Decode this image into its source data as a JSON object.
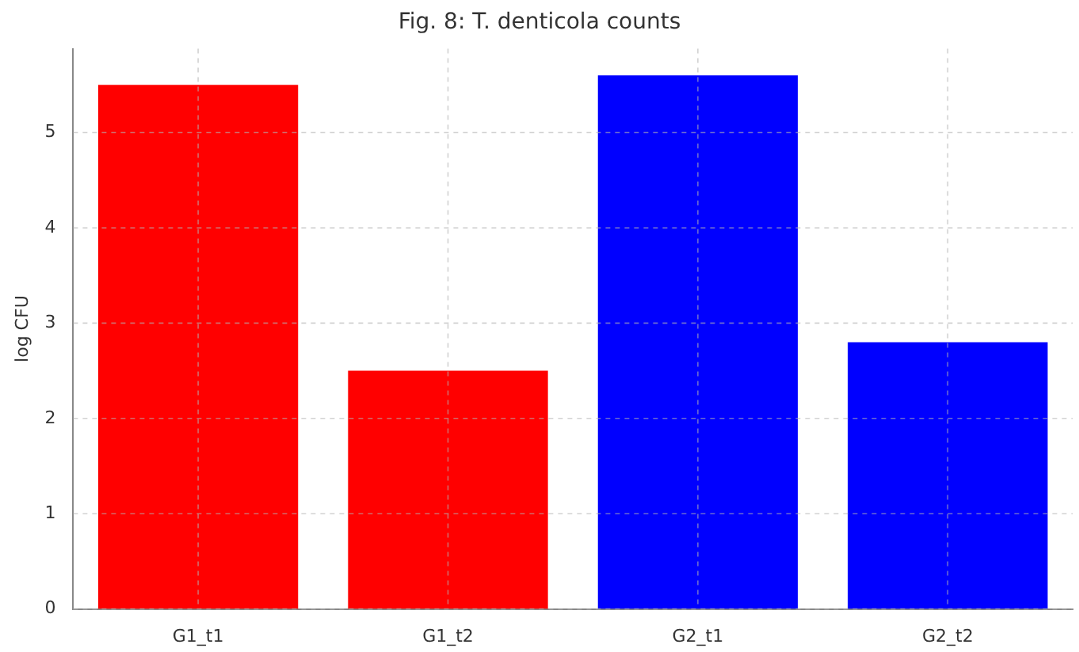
{
  "chart_data": {
    "type": "bar",
    "title": "Fig. 8: T. denticola counts",
    "ylabel": "log CFU",
    "categories": [
      "G1_t1",
      "G1_t2",
      "G2_t1",
      "G2_t2"
    ],
    "values": [
      5.5,
      2.5,
      5.6,
      2.8
    ],
    "colors": [
      "#ff0000",
      "#ff0000",
      "#0000ff",
      "#0000ff"
    ],
    "ylim": [
      0,
      5.88
    ],
    "yticks": [
      0,
      1,
      2,
      3,
      4,
      5
    ],
    "grid": true
  }
}
